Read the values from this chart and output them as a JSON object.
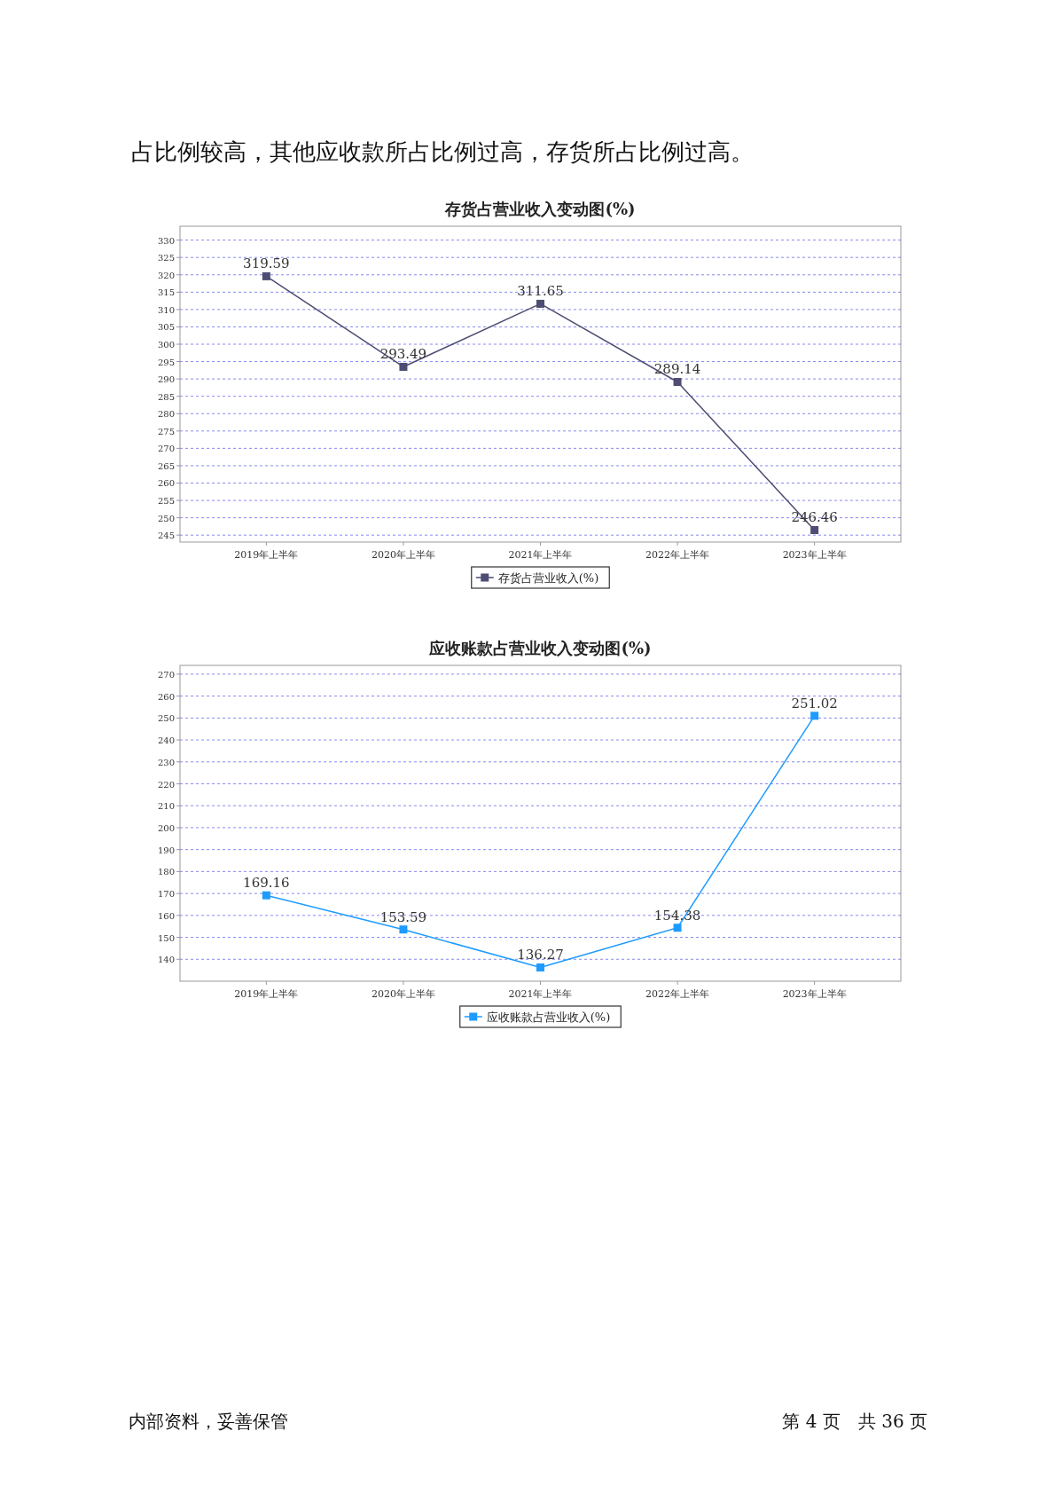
{
  "chart_data": [
    {
      "type": "line",
      "title": "存货占营业收入变动图(%)",
      "categories": [
        "2019年上半年",
        "2020年上半年",
        "2021年上半年",
        "2022年上半年",
        "2023年上半年"
      ],
      "series": [
        {
          "name": "存货占营业收入(%)",
          "color": "#4d4d73",
          "values": [
            319.59,
            293.49,
            311.65,
            289.14,
            246.46
          ]
        }
      ],
      "ylim": [
        243,
        334
      ],
      "yticks": [
        245,
        250,
        255,
        260,
        265,
        270,
        275,
        280,
        285,
        290,
        295,
        300,
        305,
        310,
        315,
        320,
        325,
        330
      ],
      "grid": "y",
      "legend": "bottom",
      "marker": "square",
      "data_labels": true,
      "annotations": [
        "占比例较高，其他应收款所占比例过高，存货所占比例过高。"
      ]
    },
    {
      "type": "line",
      "title": "应收账款占营业收入变动图(%)",
      "categories": [
        "2019年上半年",
        "2020年上半年",
        "2021年上半年",
        "2022年上半年",
        "2023年上半年"
      ],
      "series": [
        {
          "name": "应收账款占营业收入(%)",
          "color": "#1e9bff",
          "values": [
            169.16,
            153.59,
            136.27,
            154.38,
            251.02
          ]
        }
      ],
      "ylim": [
        130,
        274
      ],
      "yticks": [
        140,
        150,
        160,
        170,
        180,
        190,
        200,
        210,
        220,
        230,
        240,
        250,
        260,
        270
      ],
      "grid": "y",
      "legend": "bottom",
      "marker": "square",
      "data_labels": true,
      "annotations": [
        "内部资料，妥善保管",
        "第 4 页　共 36 页"
      ]
    }
  ]
}
